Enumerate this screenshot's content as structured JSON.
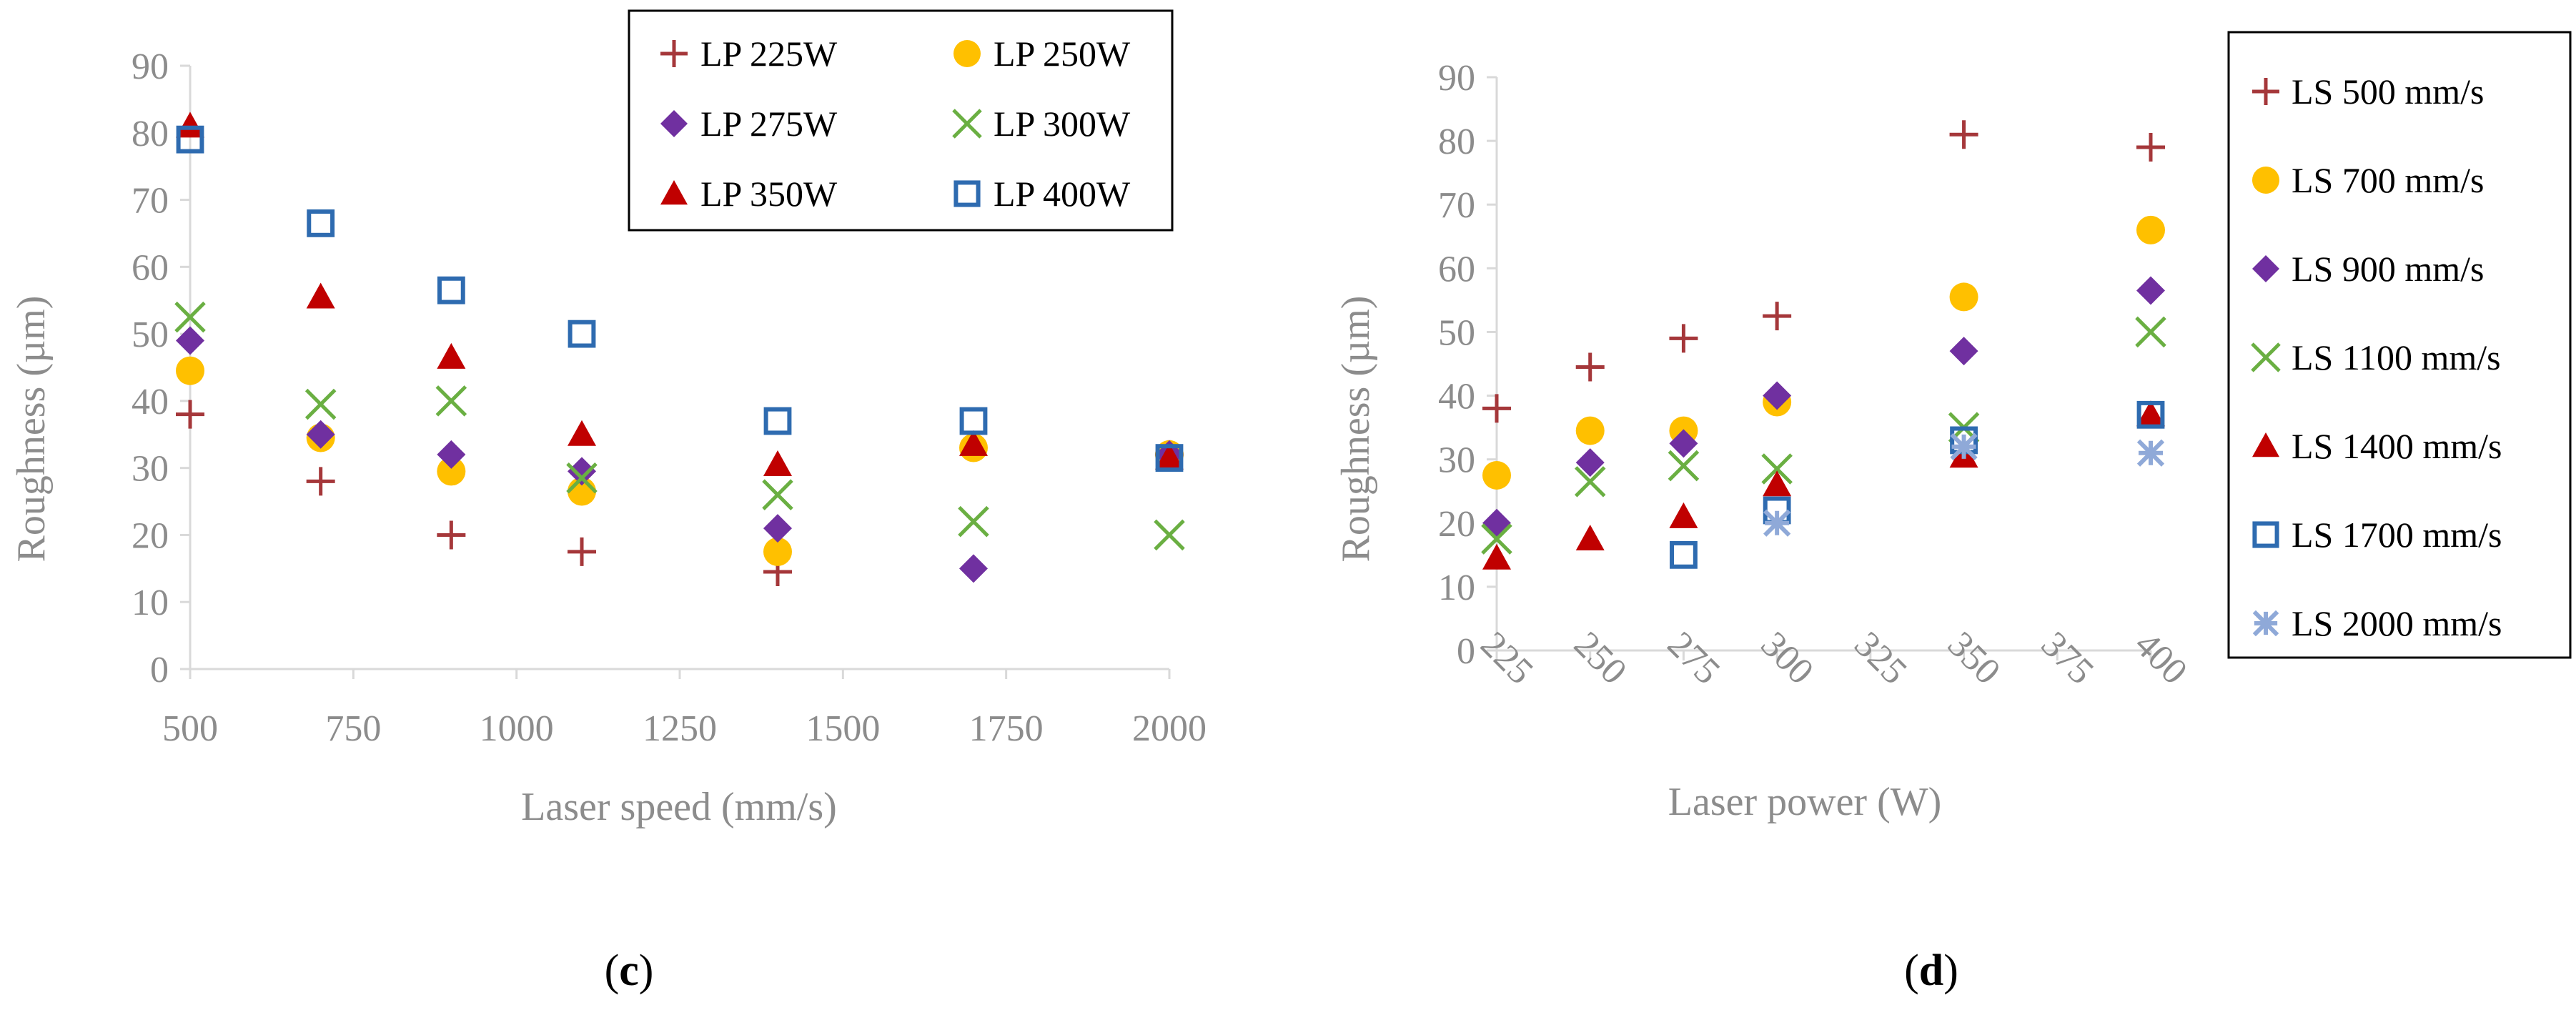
{
  "chart_data": [
    {
      "type": "scatter",
      "panel_label": "c",
      "xlabel": "Laser speed (mm/s)",
      "ylabel": "Roughness (µm)",
      "xlim": [
        500,
        2000
      ],
      "ylim": [
        0,
        90
      ],
      "xticks": [
        "500",
        "750",
        "1000",
        "1250",
        "1500",
        "1750",
        "2000"
      ],
      "yticks": [
        "0",
        "10",
        "20",
        "30",
        "40",
        "50",
        "60",
        "70",
        "80",
        "90"
      ],
      "grid": false,
      "legend_position": "top-right",
      "series": [
        {
          "name": "LP 225W",
          "marker": "plus",
          "color": "#a5373a",
          "points": [
            [
              500,
              38
            ],
            [
              700,
              28
            ],
            [
              900,
              20
            ],
            [
              1100,
              17.5
            ],
            [
              1400,
              14.5
            ],
            [
              2000,
              32
            ]
          ]
        },
        {
          "name": "LP 250W",
          "marker": "circle",
          "color": "#ffc000",
          "points": [
            [
              500,
              44.5
            ],
            [
              700,
              34.5
            ],
            [
              900,
              29.5
            ],
            [
              1100,
              26.5
            ],
            [
              1400,
              17.5
            ],
            [
              1700,
              33
            ],
            [
              2000,
              32
            ]
          ]
        },
        {
          "name": "LP 275W",
          "marker": "diamond",
          "color": "#7030a0",
          "points": [
            [
              500,
              49
            ],
            [
              700,
              35
            ],
            [
              900,
              32
            ],
            [
              1100,
              29.5
            ],
            [
              1400,
              21
            ],
            [
              1700,
              15
            ],
            [
              2000,
              32
            ]
          ]
        },
        {
          "name": "LP 300W",
          "marker": "x",
          "color": "#6aaf42",
          "points": [
            [
              500,
              52.5
            ],
            [
              700,
              39.5
            ],
            [
              900,
              40
            ],
            [
              1100,
              28.5
            ],
            [
              1400,
              26
            ],
            [
              1700,
              22
            ],
            [
              2000,
              20
            ]
          ]
        },
        {
          "name": "LP 350W",
          "marker": "triangle",
          "color": "#c00000",
          "points": [
            [
              500,
              81
            ],
            [
              700,
              55.5
            ],
            [
              900,
              46.5
            ],
            [
              1100,
              35
            ],
            [
              1400,
              30.5
            ],
            [
              1700,
              33.5
            ],
            [
              2000,
              31.5
            ]
          ]
        },
        {
          "name": "LP 400W",
          "marker": "square",
          "color": "#2e6bb0",
          "points": [
            [
              500,
              79
            ],
            [
              700,
              66.5
            ],
            [
              900,
              56.5
            ],
            [
              1100,
              50
            ],
            [
              1400,
              37
            ],
            [
              1700,
              37
            ],
            [
              2000,
              31.5
            ]
          ]
        }
      ]
    },
    {
      "type": "scatter",
      "panel_label": "d",
      "xlabel": "Laser power (W)",
      "ylabel": "Roughness (µm)",
      "xlim": [
        225,
        400
      ],
      "ylim": [
        0,
        90
      ],
      "xticks": [
        "225",
        "250",
        "275",
        "300",
        "325",
        "350",
        "375",
        "400"
      ],
      "yticks": [
        "0",
        "10",
        "20",
        "30",
        "40",
        "50",
        "60",
        "70",
        "80",
        "90"
      ],
      "grid": false,
      "legend_position": "right",
      "series": [
        {
          "name": "LS 500 mm/s",
          "marker": "plus",
          "color": "#a5373a",
          "points": [
            [
              225,
              38
            ],
            [
              250,
              44.5
            ],
            [
              275,
              49
            ],
            [
              300,
              52.5
            ],
            [
              350,
              81
            ],
            [
              400,
              79
            ]
          ]
        },
        {
          "name": "LS 700 mm/s",
          "marker": "circle",
          "color": "#ffc000",
          "points": [
            [
              225,
              27.5
            ],
            [
              250,
              34.5
            ],
            [
              275,
              34.5
            ],
            [
              300,
              39
            ],
            [
              350,
              55.5
            ],
            [
              400,
              66
            ]
          ]
        },
        {
          "name": "LS 900 mm/s",
          "marker": "diamond",
          "color": "#7030a0",
          "points": [
            [
              225,
              20
            ],
            [
              250,
              29.5
            ],
            [
              275,
              32.5
            ],
            [
              300,
              40
            ],
            [
              350,
              47
            ],
            [
              400,
              56.5
            ]
          ]
        },
        {
          "name": "LS 1100 mm/s",
          "marker": "x",
          "color": "#6aaf42",
          "points": [
            [
              225,
              17.5
            ],
            [
              250,
              26.5
            ],
            [
              275,
              29
            ],
            [
              300,
              28.5
            ],
            [
              350,
              35
            ],
            [
              400,
              50
            ]
          ]
        },
        {
          "name": "LS 1400 mm/s",
          "marker": "triangle",
          "color": "#c00000",
          "points": [
            [
              225,
              14.5
            ],
            [
              250,
              17.5
            ],
            [
              275,
              21
            ],
            [
              300,
              26
            ],
            [
              350,
              30.5
            ],
            [
              400,
              37
            ]
          ]
        },
        {
          "name": "LS 1700 mm/s",
          "marker": "square",
          "color": "#2e6bb0",
          "points": [
            [
              275,
              15
            ],
            [
              300,
              22
            ],
            [
              350,
              33
            ],
            [
              400,
              37
            ]
          ]
        },
        {
          "name": "LS 2000 mm/s",
          "marker": "star",
          "color": "#8fa9d8",
          "points": [
            [
              300,
              20
            ],
            [
              350,
              32
            ],
            [
              400,
              31
            ]
          ]
        }
      ]
    }
  ]
}
